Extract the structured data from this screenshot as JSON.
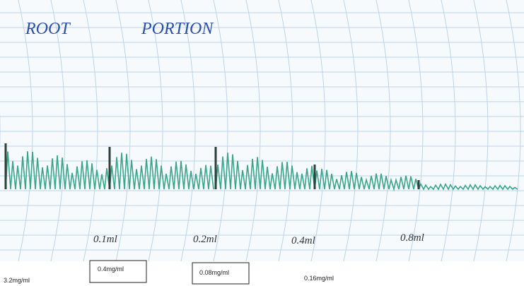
{
  "title": {
    "left": "ROOT",
    "right": "PORTION"
  },
  "trace_labels": [
    "0.1ml",
    "0.2ml",
    "0.4ml",
    "0.8ml"
  ],
  "concentration_labels": [
    "3.2mg/ml",
    "0.4mg/ml",
    "0.08mg/ml",
    "0.16mg/ml"
  ]
}
